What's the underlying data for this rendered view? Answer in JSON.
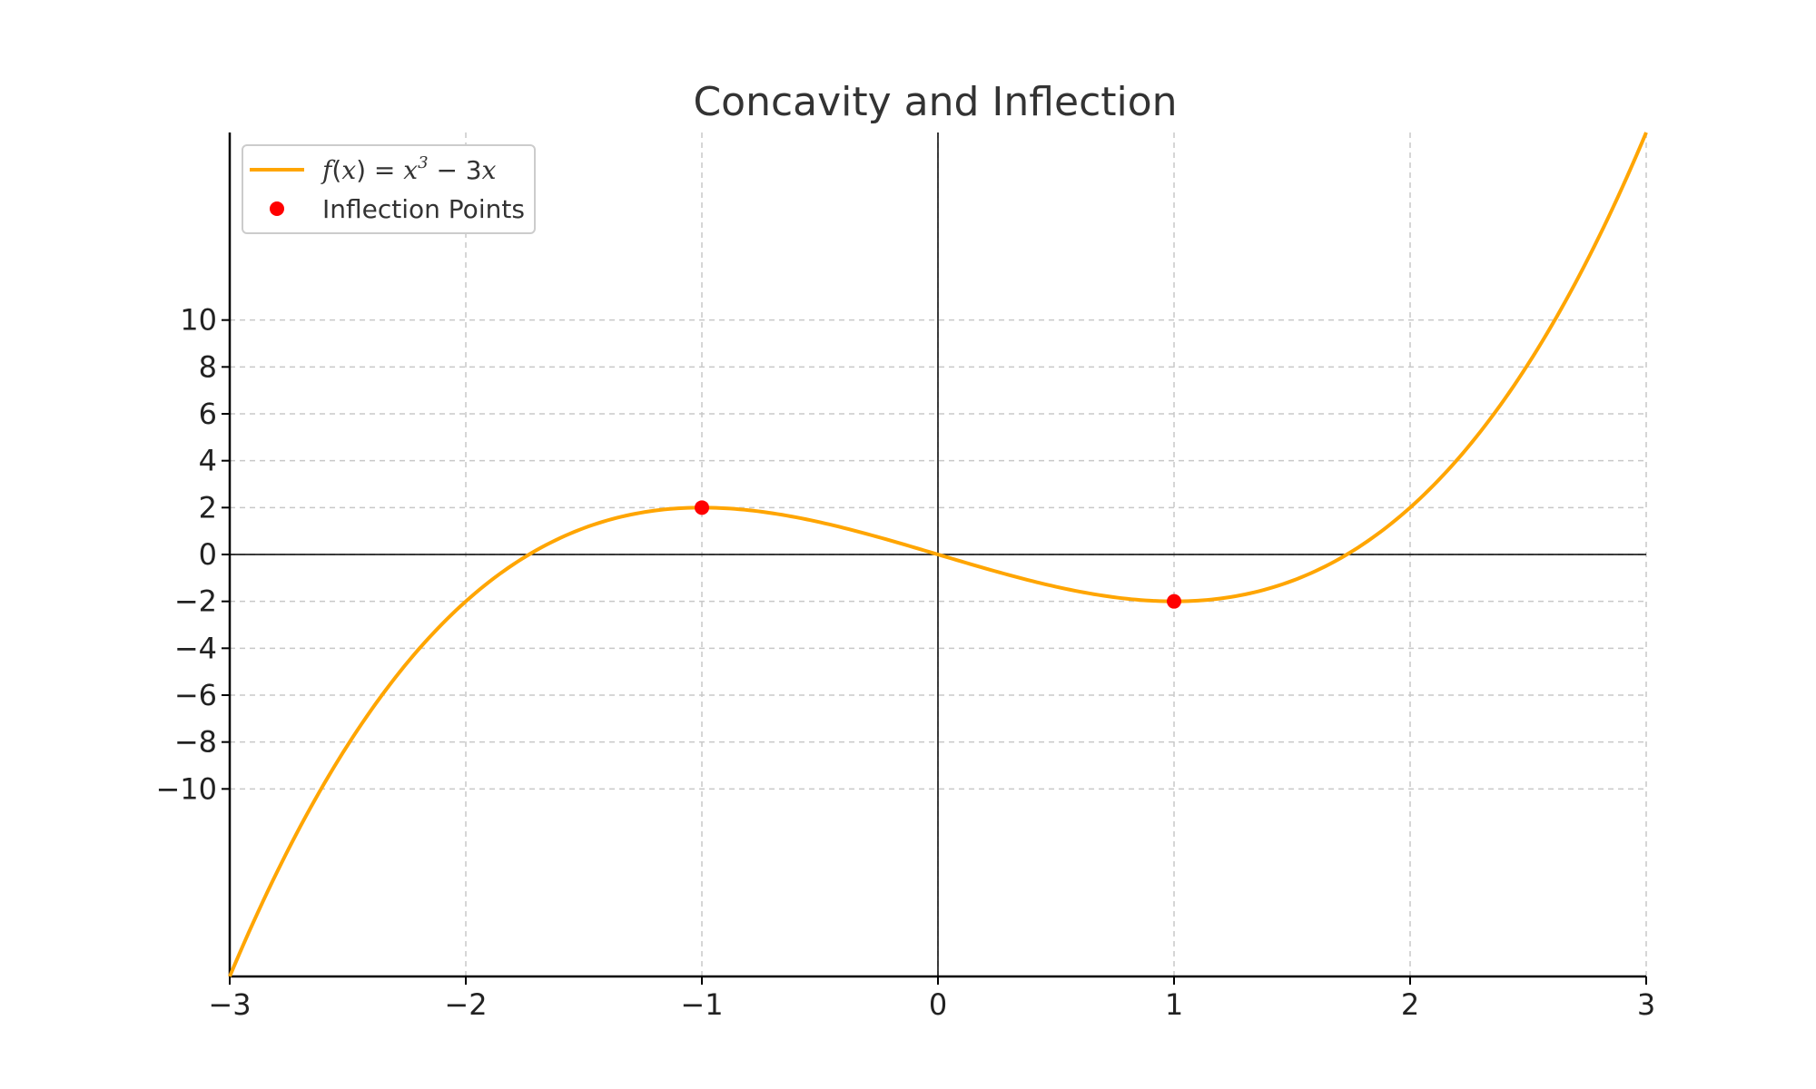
{
  "chart_data": {
    "type": "line",
    "title": "Concavity and Inflection",
    "xlabel": "",
    "ylabel": "",
    "xlim": [
      -3,
      3
    ],
    "ylim": [
      -18,
      18
    ],
    "xticks": [
      -3,
      -2,
      -1,
      0,
      1,
      2,
      3
    ],
    "xtick_labels": [
      "−3",
      "−2",
      "−1",
      "0",
      "1",
      "2",
      "3"
    ],
    "yticks": [
      -10,
      -8,
      -6,
      -4,
      -2,
      0,
      2,
      4,
      6,
      8,
      10
    ],
    "ytick_labels": [
      "−10",
      "−8",
      "−6",
      "−4",
      "−2",
      "0",
      "2",
      "4",
      "6",
      "8",
      "10"
    ],
    "grid": true,
    "axis_lines_at_zero": true,
    "legend_position": "top-left",
    "series": [
      {
        "name": "f(x) = x³ − 3x",
        "type": "line",
        "color": "#ffa500",
        "function": "x^3 - 3x",
        "x": [
          -3,
          -2.75,
          -2.5,
          -2.25,
          -2,
          -1.75,
          -1.5,
          -1.25,
          -1,
          -0.75,
          -0.5,
          -0.25,
          0,
          0.25,
          0.5,
          0.75,
          1,
          1.25,
          1.5,
          1.75,
          2,
          2.25,
          2.5,
          2.75,
          3
        ],
        "y": [
          -18,
          -12.55,
          -8.13,
          -4.64,
          -2,
          -0.11,
          1.13,
          1.8,
          2,
          1.83,
          1.38,
          0.73,
          0,
          -0.73,
          -1.38,
          -1.83,
          -2,
          -1.8,
          -1.13,
          0.11,
          2,
          4.64,
          8.13,
          12.55,
          18
        ]
      },
      {
        "name": "Inflection Points",
        "type": "scatter",
        "color": "#ff0000",
        "points": [
          {
            "x": -1,
            "y": 2
          },
          {
            "x": 1,
            "y": -2
          }
        ]
      }
    ]
  }
}
